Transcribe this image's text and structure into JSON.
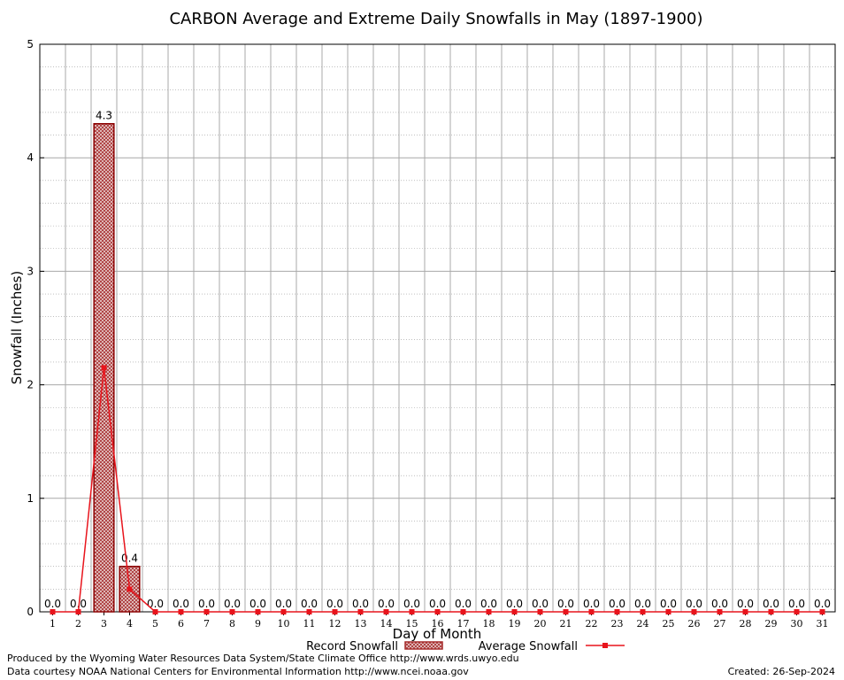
{
  "chart_data": {
    "type": "bar",
    "title": "CARBON Average and Extreme Daily Snowfalls in May (1897-1900)",
    "xlabel": "Day of Month",
    "ylabel": "Snowfall (Inches)",
    "ylim": [
      0,
      5
    ],
    "yticks": [
      0,
      1,
      2,
      3,
      4,
      5
    ],
    "grid": true,
    "legend_placement": "bottom-center",
    "categories": [
      "1",
      "2",
      "3",
      "4",
      "5",
      "6",
      "7",
      "8",
      "9",
      "10",
      "11",
      "12",
      "13",
      "14",
      "15",
      "16",
      "17",
      "18",
      "19",
      "20",
      "21",
      "22",
      "23",
      "24",
      "25",
      "26",
      "27",
      "28",
      "29",
      "30",
      "31"
    ],
    "series": [
      {
        "name": "Record Snowfall",
        "kind": "bar",
        "color": "#a52a2a",
        "values": [
          0,
          0,
          4.3,
          0.4,
          0,
          0,
          0,
          0,
          0,
          0,
          0,
          0,
          0,
          0,
          0,
          0,
          0,
          0,
          0,
          0,
          0,
          0,
          0,
          0,
          0,
          0,
          0,
          0,
          0,
          0,
          0
        ],
        "labels": [
          "0.0",
          "0.0",
          "4.3",
          "0.4",
          "0.0",
          "0.0",
          "0.0",
          "0.0",
          "0.0",
          "0.0",
          "0.0",
          "0.0",
          "0.0",
          "0.0",
          "0.0",
          "0.0",
          "0.0",
          "0.0",
          "0.0",
          "0.0",
          "0.0",
          "0.0",
          "0.0",
          "0.0",
          "0.0",
          "0.0",
          "0.0",
          "0.0",
          "0.0",
          "0.0",
          "0.0"
        ]
      },
      {
        "name": "Average Snowfall",
        "kind": "line",
        "color": "#e8141c",
        "values": [
          0,
          0,
          2.15,
          0.2,
          0,
          0,
          0,
          0,
          0,
          0,
          0,
          0,
          0,
          0,
          0,
          0,
          0,
          0,
          0,
          0,
          0,
          0,
          0,
          0,
          0,
          0,
          0,
          0,
          0,
          0,
          0
        ]
      }
    ]
  },
  "footer": {
    "produced_by": "Produced by the Wyoming Water Resources Data System/State Climate Office http://www.wrds.uwyo.edu",
    "data_courtesy": "Data courtesy NOAA National Centers for Environmental Information http://www.ncei.noaa.gov",
    "created": "Created:  26-Sep-2024"
  }
}
